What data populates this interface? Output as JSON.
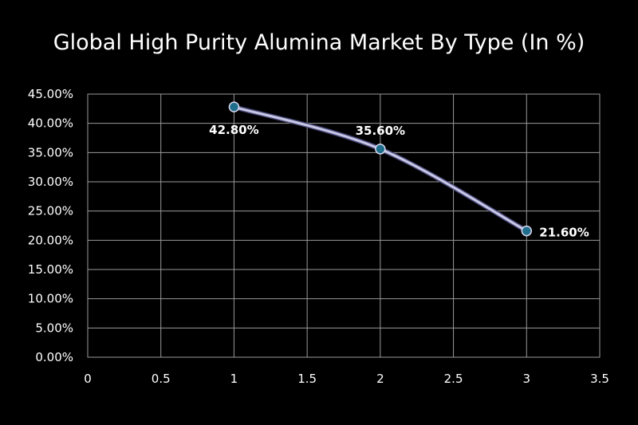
{
  "chart_data": {
    "type": "scatter",
    "title": "Global High Purity Alumina Market By Type (In %)",
    "xlabel": "",
    "ylabel": "",
    "xlim": [
      0,
      3.5
    ],
    "ylim": [
      0,
      0.45
    ],
    "x_ticks": [
      "0",
      "0.5",
      "1",
      "1.5",
      "2",
      "2.5",
      "3",
      "3.5"
    ],
    "y_ticks": [
      "0.00%",
      "5.00%",
      "10.00%",
      "15.00%",
      "20.00%",
      "25.00%",
      "30.00%",
      "35.00%",
      "40.00%",
      "45.00%"
    ],
    "grid": true,
    "legend": "none",
    "series": [
      {
        "x": [
          1,
          2,
          3
        ],
        "y": [
          0.428,
          0.356,
          0.216
        ],
        "labels": [
          "42.80%",
          "35.60%",
          "21.60%"
        ],
        "line_color": "#c8c8e6",
        "marker_color": "#1f6e8c"
      }
    ]
  }
}
